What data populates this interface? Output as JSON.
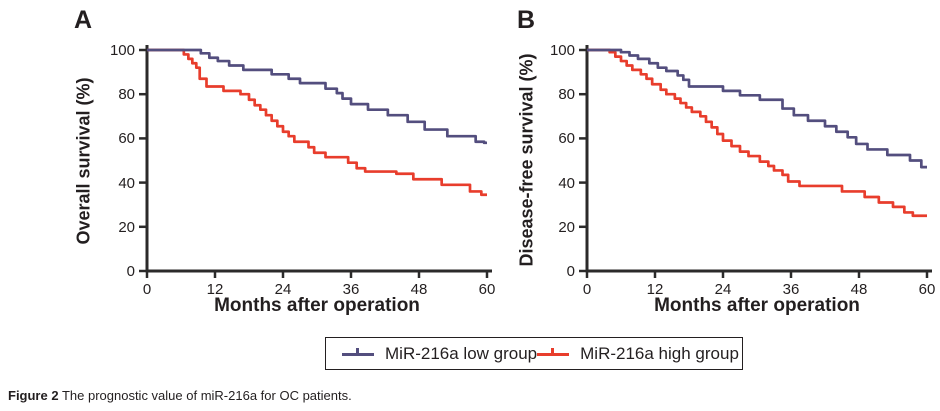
{
  "figure": {
    "caption_bold": "Figure 2",
    "caption_rest": " The prognostic value of miR-216a for OC patients."
  },
  "colors": {
    "low_group": "#534e7e",
    "high_group": "#e83d2c",
    "axis": "#2b2a2a",
    "text": "#231f20"
  },
  "legend": {
    "items": [
      {
        "label": "MiR-216a low group",
        "color": "#534e7e"
      },
      {
        "label": "MiR-216a high group",
        "color": "#e83d2c"
      }
    ]
  },
  "chart_data": [
    {
      "type": "line",
      "panel_label": "A",
      "ylabel": "Overall survival (%)",
      "xlabel": "Months after operation",
      "xlim": [
        0,
        60
      ],
      "ylim": [
        0,
        100
      ],
      "x_ticks": [
        0,
        12,
        24,
        36,
        48,
        60
      ],
      "y_ticks": [
        0,
        20,
        40,
        60,
        80,
        100
      ],
      "grid": false,
      "legend_position": "below-figure",
      "series": [
        {
          "name": "MiR-216a low group",
          "color": "#534e7e",
          "step_points": [
            [
              0,
              100
            ],
            [
              9.5,
              98.5
            ],
            [
              11,
              96.5
            ],
            [
              12.5,
              95
            ],
            [
              14.5,
              93
            ],
            [
              17,
              91
            ],
            [
              22,
              89
            ],
            [
              25,
              87
            ],
            [
              27,
              85
            ],
            [
              31.5,
              82.5
            ],
            [
              33.5,
              80.5
            ],
            [
              34.5,
              78
            ],
            [
              36,
              75.5
            ],
            [
              39,
              73
            ],
            [
              42.5,
              70.5
            ],
            [
              46,
              67.5
            ],
            [
              49,
              64
            ],
            [
              53,
              61
            ],
            [
              58,
              58.5
            ],
            [
              59.5,
              58
            ],
            [
              60,
              58
            ]
          ]
        },
        {
          "name": "MiR-216a high group",
          "color": "#e83d2c",
          "step_points": [
            [
              0,
              100
            ],
            [
              6.5,
              98
            ],
            [
              7.3,
              96
            ],
            [
              8,
              94
            ],
            [
              8.7,
              92
            ],
            [
              9.3,
              87
            ],
            [
              10.5,
              83.5
            ],
            [
              13.5,
              81.5
            ],
            [
              16.5,
              80
            ],
            [
              18,
              77.5
            ],
            [
              19,
              75
            ],
            [
              20,
              73
            ],
            [
              21,
              70.5
            ],
            [
              22,
              68
            ],
            [
              23,
              65.5
            ],
            [
              24,
              63
            ],
            [
              25,
              61
            ],
            [
              26,
              58.5
            ],
            [
              28.5,
              56
            ],
            [
              29.5,
              53.5
            ],
            [
              31.5,
              51.5
            ],
            [
              35.5,
              49
            ],
            [
              37,
              46.5
            ],
            [
              38.5,
              45
            ],
            [
              44,
              44
            ],
            [
              47,
              41.5
            ],
            [
              52,
              39
            ],
            [
              57,
              36
            ],
            [
              59,
              34.5
            ],
            [
              60,
              34.5
            ]
          ]
        }
      ]
    },
    {
      "type": "line",
      "panel_label": "B",
      "ylabel": "Disease-free survival (%)",
      "xlabel": "Months after operation",
      "xlim": [
        0,
        60
      ],
      "ylim": [
        0,
        100
      ],
      "x_ticks": [
        0,
        12,
        24,
        36,
        48,
        60
      ],
      "y_ticks": [
        0,
        20,
        40,
        60,
        80,
        100
      ],
      "grid": false,
      "legend_position": "below-figure",
      "series": [
        {
          "name": "MiR-216a low group",
          "color": "#534e7e",
          "step_points": [
            [
              0,
              100
            ],
            [
              6,
              99
            ],
            [
              7.5,
              97.5
            ],
            [
              9,
              96
            ],
            [
              11,
              94
            ],
            [
              12.5,
              92
            ],
            [
              14,
              90.5
            ],
            [
              16,
              88.5
            ],
            [
              17,
              86.5
            ],
            [
              18,
              83.5
            ],
            [
              24,
              81.5
            ],
            [
              27,
              79.5
            ],
            [
              30.5,
              77.5
            ],
            [
              34.5,
              73.5
            ],
            [
              36.5,
              70.5
            ],
            [
              39,
              68
            ],
            [
              42,
              65.5
            ],
            [
              44,
              63
            ],
            [
              46,
              60.5
            ],
            [
              47.5,
              57.5
            ],
            [
              49.5,
              55
            ],
            [
              53,
              52.5
            ],
            [
              57,
              50
            ],
            [
              59,
              47
            ],
            [
              60,
              47
            ]
          ]
        },
        {
          "name": "MiR-216a high group",
          "color": "#e83d2c",
          "step_points": [
            [
              0,
              100
            ],
            [
              4,
              99
            ],
            [
              5,
              97
            ],
            [
              6,
              95
            ],
            [
              7,
              93
            ],
            [
              8,
              91
            ],
            [
              9.5,
              89
            ],
            [
              10.5,
              87
            ],
            [
              11.5,
              84.5
            ],
            [
              13,
              82
            ],
            [
              14,
              80
            ],
            [
              15.5,
              78
            ],
            [
              16.5,
              76
            ],
            [
              17.5,
              74
            ],
            [
              18.5,
              72
            ],
            [
              20,
              70
            ],
            [
              21,
              67.5
            ],
            [
              22,
              65
            ],
            [
              23,
              62
            ],
            [
              24,
              59
            ],
            [
              25.5,
              56.5
            ],
            [
              27,
              54
            ],
            [
              28.5,
              52
            ],
            [
              30.5,
              49.5
            ],
            [
              32,
              47.5
            ],
            [
              33,
              45.5
            ],
            [
              34.5,
              43.5
            ],
            [
              35.5,
              40.5
            ],
            [
              37.5,
              38.5
            ],
            [
              45,
              36
            ],
            [
              49,
              33.5
            ],
            [
              51.5,
              31
            ],
            [
              54,
              29
            ],
            [
              56,
              26.5
            ],
            [
              57.5,
              25
            ],
            [
              60,
              25
            ]
          ]
        }
      ]
    }
  ]
}
